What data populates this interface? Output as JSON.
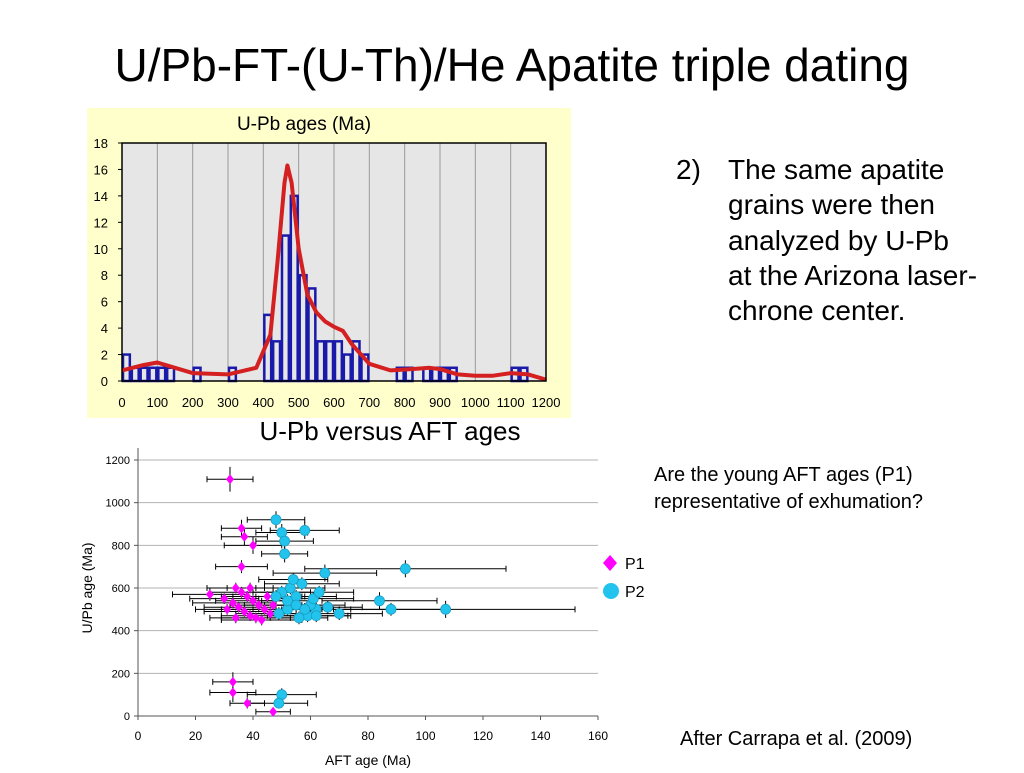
{
  "title": "U/Pb-FT-(U-Th)/He Apatite triple dating",
  "note": {
    "number": "2)",
    "text": "The same apatite grains were then analyzed by U-Pb at the Arizona laser-chrone center."
  },
  "question": "Are the young AFT ages (P1) representative of exhumation?",
  "credit": "After Carrapa et al. (2009)",
  "colors": {
    "histogram_bg": "#ffffcc",
    "plot_bg": "#e6e6e6",
    "bars": "#1a1aaa",
    "curve": "#d42020",
    "p1": "#ff00ff",
    "p2": "#22c4ee"
  },
  "chart_data": [
    {
      "type": "bar",
      "title": "U-Pb ages (Ma)",
      "xlabel": "",
      "ylabel": "",
      "xlim": [
        0,
        1200
      ],
      "ylim": [
        0,
        18
      ],
      "x_ticks": [
        "0",
        "100",
        "200",
        "300",
        "400",
        "500",
        "600",
        "700",
        "800",
        "900",
        "1000",
        "1100",
        "1200"
      ],
      "y_ticks": [
        "0",
        "2",
        "4",
        "6",
        "8",
        "10",
        "12",
        "14",
        "16",
        "18"
      ],
      "grid": "vertical",
      "bin_width": 25,
      "bins": [
        {
          "x": 0,
          "count": 2
        },
        {
          "x": 25,
          "count": 1
        },
        {
          "x": 50,
          "count": 1
        },
        {
          "x": 75,
          "count": 1
        },
        {
          "x": 100,
          "count": 1
        },
        {
          "x": 125,
          "count": 1
        },
        {
          "x": 200,
          "count": 1
        },
        {
          "x": 300,
          "count": 1
        },
        {
          "x": 400,
          "count": 5
        },
        {
          "x": 425,
          "count": 3
        },
        {
          "x": 450,
          "count": 11
        },
        {
          "x": 475,
          "count": 14
        },
        {
          "x": 500,
          "count": 8
        },
        {
          "x": 525,
          "count": 7
        },
        {
          "x": 550,
          "count": 3
        },
        {
          "x": 575,
          "count": 3
        },
        {
          "x": 600,
          "count": 3
        },
        {
          "x": 625,
          "count": 2
        },
        {
          "x": 650,
          "count": 3
        },
        {
          "x": 675,
          "count": 2
        },
        {
          "x": 775,
          "count": 1
        },
        {
          "x": 800,
          "count": 1
        },
        {
          "x": 850,
          "count": 1
        },
        {
          "x": 875,
          "count": 1
        },
        {
          "x": 900,
          "count": 1
        },
        {
          "x": 925,
          "count": 1
        },
        {
          "x": 1100,
          "count": 1
        },
        {
          "x": 1125,
          "count": 1
        }
      ],
      "probability_curve": [
        [
          0,
          0.8
        ],
        [
          60,
          1.2
        ],
        [
          100,
          1.4
        ],
        [
          150,
          1.0
        ],
        [
          200,
          0.6
        ],
        [
          300,
          0.5
        ],
        [
          380,
          1.0
        ],
        [
          420,
          3.5
        ],
        [
          440,
          9
        ],
        [
          460,
          15
        ],
        [
          468,
          16.3
        ],
        [
          480,
          15
        ],
        [
          500,
          10
        ],
        [
          525,
          6.5
        ],
        [
          550,
          5.2
        ],
        [
          575,
          4.5
        ],
        [
          600,
          4.1
        ],
        [
          625,
          3.8
        ],
        [
          650,
          2.8
        ],
        [
          700,
          1.3
        ],
        [
          760,
          0.8
        ],
        [
          820,
          0.9
        ],
        [
          870,
          1.0
        ],
        [
          900,
          0.9
        ],
        [
          950,
          0.5
        ],
        [
          1000,
          0.4
        ],
        [
          1050,
          0.4
        ],
        [
          1100,
          0.6
        ],
        [
          1150,
          0.5
        ],
        [
          1200,
          0.1
        ]
      ]
    },
    {
      "type": "scatter",
      "title": "U-Pb versus AFT ages",
      "xlabel": "AFT age (Ma)",
      "ylabel": "U/Pb age (Ma)",
      "xlim": [
        0,
        160
      ],
      "ylim": [
        0,
        1200
      ],
      "x_ticks": [
        "0",
        "20",
        "40",
        "60",
        "80",
        "100",
        "120",
        "140",
        "160"
      ],
      "y_ticks": [
        "0",
        "200",
        "400",
        "600",
        "800",
        "1000",
        "1200"
      ],
      "grid": "horizontal",
      "legend_position": "right",
      "series": [
        {
          "name": "P1",
          "marker": "diamond",
          "color": "#ff00ff",
          "points": [
            [
              32,
              1110,
              8,
              58
            ],
            [
              36,
              880,
              7,
              40
            ],
            [
              37,
              840,
              8,
              40
            ],
            [
              40,
              800,
              10,
              40
            ],
            [
              36,
              700,
              9,
              30
            ],
            [
              25,
              570,
              13,
              30
            ],
            [
              30,
              550,
              12,
              25
            ],
            [
              33,
              530,
              14,
              25
            ],
            [
              35,
              510,
              12,
              25
            ],
            [
              37,
              490,
              14,
              25
            ],
            [
              39,
              470,
              10,
              25
            ],
            [
              41,
              460,
              12,
              25
            ],
            [
              43,
              450,
              14,
              25
            ],
            [
              34,
              600,
              10,
              25
            ],
            [
              36,
              580,
              11,
              25
            ],
            [
              38,
              560,
              9,
              25
            ],
            [
              40,
              540,
              13,
              25
            ],
            [
              42,
              520,
              10,
              25
            ],
            [
              44,
              500,
              15,
              25
            ],
            [
              46,
              480,
              12,
              25
            ],
            [
              34,
              460,
              9,
              25
            ],
            [
              31,
              500,
              11,
              25
            ],
            [
              39,
              600,
              8,
              25
            ],
            [
              45,
              560,
              12,
              25
            ],
            [
              47,
              520,
              10,
              25
            ],
            [
              33,
              160,
              7,
              45
            ],
            [
              33,
              110,
              8,
              45
            ],
            [
              38,
              60,
              6,
              25
            ],
            [
              47,
              20,
              6,
              20
            ]
          ]
        },
        {
          "name": "P2",
          "marker": "circle",
          "color": "#22c4ee",
          "points": [
            [
              48,
              920,
              10,
              40
            ],
            [
              50,
              860,
              9,
              40
            ],
            [
              51,
              820,
              10,
              40
            ],
            [
              58,
              870,
              12,
              40
            ],
            [
              51,
              760,
              8,
              40
            ],
            [
              65,
              670,
              18,
              40
            ],
            [
              93,
              690,
              35,
              40
            ],
            [
              84,
              540,
              20,
              40
            ],
            [
              107,
              500,
              45,
              40
            ],
            [
              88,
              500,
              18,
              30
            ],
            [
              70,
              480,
              15,
              30
            ],
            [
              62,
              500,
              12,
              30
            ],
            [
              55,
              560,
              14,
              30
            ],
            [
              60,
              520,
              12,
              30
            ],
            [
              66,
              510,
              12,
              30
            ],
            [
              50,
              580,
              10,
              30
            ],
            [
              53,
              600,
              12,
              30
            ],
            [
              57,
              620,
              13,
              30
            ],
            [
              54,
              640,
              12,
              30
            ],
            [
              59,
              470,
              14,
              30
            ],
            [
              49,
              480,
              10,
              30
            ],
            [
              52,
              500,
              12,
              30
            ],
            [
              56,
              460,
              10,
              30
            ],
            [
              61,
              550,
              14,
              30
            ],
            [
              63,
              580,
              12,
              30
            ],
            [
              48,
              560,
              10,
              30
            ],
            [
              52,
              540,
              9,
              30
            ],
            [
              55,
              520,
              11,
              30
            ],
            [
              58,
              500,
              10,
              30
            ],
            [
              62,
              470,
              12,
              30
            ],
            [
              50,
              100,
              12,
              30
            ],
            [
              49,
              60,
              10,
              20
            ]
          ]
        }
      ]
    }
  ]
}
